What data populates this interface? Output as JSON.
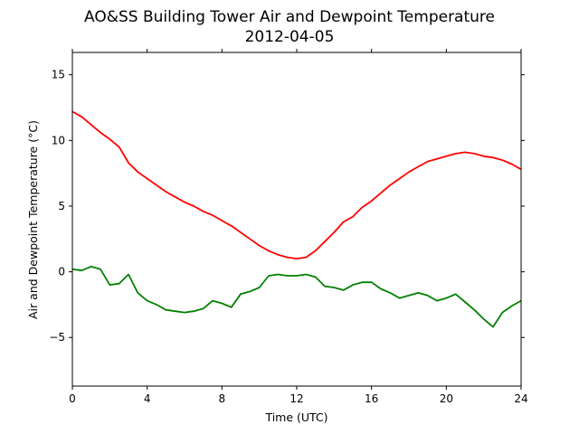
{
  "chart_data": {
    "type": "line",
    "title": "AO&SS Building Tower Air and Dewpoint Temperature",
    "subtitle": "2012-04-05",
    "xlabel": "Time (UTC)",
    "ylabel": "Air and Dewpoint Temperature (°C)",
    "xlim": [
      0,
      24
    ],
    "ylim": [
      -8.7,
      16.7
    ],
    "xticks": [
      0,
      4,
      8,
      12,
      16,
      20,
      24
    ],
    "yticks": [
      -5,
      0,
      5,
      10,
      15
    ],
    "grid": false,
    "legend": "none",
    "series": [
      {
        "color": "#ff0000",
        "x": [
          0,
          0.5,
          1,
          1.5,
          2,
          2.5,
          3,
          3.5,
          4,
          4.5,
          5,
          5.5,
          6,
          6.5,
          7,
          7.5,
          8,
          8.5,
          9,
          9.5,
          10,
          10.5,
          11,
          11.5,
          12,
          12.5,
          13,
          13.5,
          14,
          14.5,
          15,
          15.5,
          16,
          16.5,
          17,
          17.5,
          18,
          18.5,
          19,
          19.5,
          20,
          20.5,
          21,
          21.5,
          22,
          22.5,
          23,
          23.5,
          24
        ],
        "values": [
          12.2,
          11.8,
          11.2,
          10.6,
          10.1,
          9.5,
          8.3,
          7.6,
          7.1,
          6.6,
          6.1,
          5.7,
          5.3,
          5.0,
          4.6,
          4.3,
          3.9,
          3.5,
          3.0,
          2.5,
          2.0,
          1.6,
          1.3,
          1.1,
          1.0,
          1.1,
          1.6,
          2.3,
          3.0,
          3.8,
          4.2,
          4.9,
          5.4,
          6.0,
          6.6,
          7.1,
          7.6,
          8.0,
          8.4,
          8.6,
          8.8,
          9.0,
          9.1,
          9.0,
          8.8,
          8.7,
          8.5,
          8.2,
          7.8
        ]
      },
      {
        "color": "#008000",
        "x": [
          0,
          0.5,
          1,
          1.5,
          2,
          2.5,
          3,
          3.5,
          4,
          4.5,
          5,
          5.5,
          6,
          6.5,
          7,
          7.5,
          8,
          8.5,
          9,
          9.5,
          10,
          10.5,
          11,
          11.5,
          12,
          12.5,
          13,
          13.5,
          14,
          14.5,
          15,
          15.5,
          16,
          16.5,
          17,
          17.5,
          18,
          18.5,
          19,
          19.5,
          20,
          20.5,
          21,
          21.5,
          22,
          22.5,
          23,
          23.5,
          24
        ],
        "values": [
          0.2,
          0.1,
          0.4,
          0.2,
          -1.0,
          -0.9,
          -0.2,
          -1.6,
          -2.2,
          -2.5,
          -2.9,
          -3.0,
          -3.1,
          -3.0,
          -2.8,
          -2.2,
          -2.4,
          -2.7,
          -1.7,
          -1.5,
          -1.2,
          -0.3,
          -0.2,
          -0.3,
          -0.3,
          -0.2,
          -0.4,
          -1.1,
          -1.2,
          -1.4,
          -1.0,
          -0.8,
          -0.8,
          -1.3,
          -1.6,
          -2.0,
          -1.8,
          -1.6,
          -1.8,
          -2.2,
          -2.0,
          -1.7,
          -2.3,
          -2.9,
          -3.6,
          -4.2,
          -3.1,
          -2.6,
          -2.2
        ]
      }
    ]
  }
}
